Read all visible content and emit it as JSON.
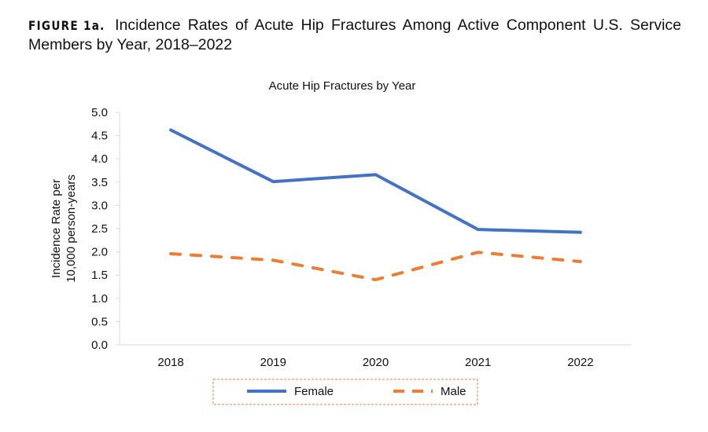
{
  "figure": {
    "label": "FIGURE 1a.",
    "caption": "Incidence Rates of Acute Hip Fractures Among Active Component U.S. Service Members by Year, 2018–2022"
  },
  "chart_data": {
    "type": "line",
    "title": "Acute Hip Fractures by Year",
    "xlabel": "",
    "ylabel": "Incidence Rate per 10,000 person-years",
    "ylabel_lines": [
      "Incidence Rate per",
      "10,000 person-years"
    ],
    "categories": [
      "2018",
      "2019",
      "2020",
      "2021",
      "2022"
    ],
    "ylim": [
      0,
      5
    ],
    "yticks": [
      "0.0",
      "0.5",
      "1.0",
      "1.5",
      "2.0",
      "2.5",
      "3.0",
      "3.5",
      "4.0",
      "4.5",
      "5.0"
    ],
    "grid": false,
    "legend_placement": "bottom",
    "series": [
      {
        "name": "Female",
        "values": [
          4.62,
          3.51,
          3.66,
          2.48,
          2.42
        ],
        "color": "#4472C4",
        "style": "solid"
      },
      {
        "name": "Male",
        "values": [
          1.96,
          1.82,
          1.4,
          1.99,
          1.79
        ],
        "color": "#ED7D31",
        "style": "dashed"
      }
    ]
  }
}
